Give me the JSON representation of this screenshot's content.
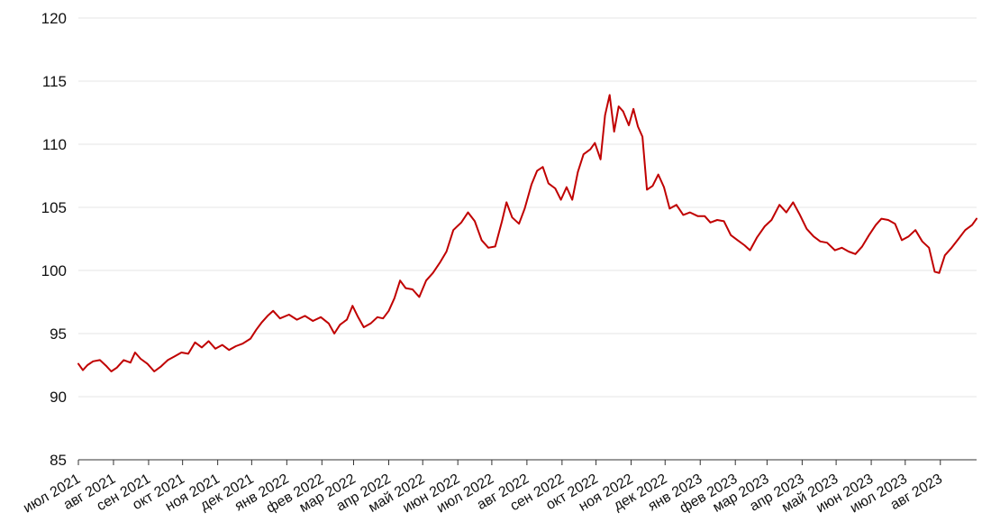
{
  "chart_data": {
    "type": "line",
    "title": "",
    "xlabel": "",
    "ylabel": "",
    "ylim": [
      85,
      120
    ],
    "yticks": [
      85,
      90,
      95,
      100,
      105,
      110,
      115,
      120
    ],
    "grid": true,
    "xticks": [
      "июл 2021",
      "авг 2021",
      "сен 2021",
      "окт 2021",
      "ноя 2021",
      "дек 2021",
      "янв 2022",
      "фев 2022",
      "мар 2022",
      "апр 2022",
      "май 2022",
      "июн 2022",
      "июл 2022",
      "авг 2022",
      "сен 2022",
      "окт 2022",
      "ноя 2022",
      "дек 2022",
      "янв 2023",
      "фев 2023",
      "мар 2023",
      "апр 2023",
      "май 2023",
      "июн 2023",
      "июл 2023",
      "авг 2023"
    ],
    "series": [
      {
        "color": "#c00000",
        "points": [
          [
            "2021-07-01",
            92.6
          ],
          [
            "2021-07-05",
            92.1
          ],
          [
            "2021-07-09",
            92.5
          ],
          [
            "2021-07-14",
            92.8
          ],
          [
            "2021-07-20",
            92.9
          ],
          [
            "2021-07-26",
            92.4
          ],
          [
            "2021-07-30",
            92.0
          ],
          [
            "2021-08-04",
            92.3
          ],
          [
            "2021-08-10",
            92.9
          ],
          [
            "2021-08-16",
            92.7
          ],
          [
            "2021-08-20",
            93.5
          ],
          [
            "2021-08-25",
            93.0
          ],
          [
            "2021-08-31",
            92.6
          ],
          [
            "2021-09-06",
            92.0
          ],
          [
            "2021-09-12",
            92.4
          ],
          [
            "2021-09-18",
            92.9
          ],
          [
            "2021-09-24",
            93.2
          ],
          [
            "2021-09-30",
            93.5
          ],
          [
            "2021-10-06",
            93.4
          ],
          [
            "2021-10-12",
            94.3
          ],
          [
            "2021-10-18",
            93.9
          ],
          [
            "2021-10-24",
            94.4
          ],
          [
            "2021-10-30",
            93.8
          ],
          [
            "2021-11-05",
            94.1
          ],
          [
            "2021-11-11",
            93.7
          ],
          [
            "2021-11-17",
            94.0
          ],
          [
            "2021-11-23",
            94.2
          ],
          [
            "2021-11-30",
            94.6
          ],
          [
            "2021-12-05",
            95.3
          ],
          [
            "2021-12-10",
            95.9
          ],
          [
            "2021-12-15",
            96.4
          ],
          [
            "2021-12-20",
            96.8
          ],
          [
            "2021-12-26",
            96.2
          ],
          [
            "2022-01-03",
            96.5
          ],
          [
            "2022-01-10",
            96.1
          ],
          [
            "2022-01-17",
            96.4
          ],
          [
            "2022-01-24",
            96.0
          ],
          [
            "2022-01-31",
            96.3
          ],
          [
            "2022-02-07",
            95.8
          ],
          [
            "2022-02-12",
            95.0
          ],
          [
            "2022-02-17",
            95.7
          ],
          [
            "2022-02-23",
            96.1
          ],
          [
            "2022-02-28",
            97.2
          ],
          [
            "2022-03-05",
            96.3
          ],
          [
            "2022-03-10",
            95.5
          ],
          [
            "2022-03-16",
            95.8
          ],
          [
            "2022-03-22",
            96.3
          ],
          [
            "2022-03-27",
            96.2
          ],
          [
            "2022-04-01",
            96.8
          ],
          [
            "2022-04-06",
            97.8
          ],
          [
            "2022-04-11",
            99.2
          ],
          [
            "2022-04-16",
            98.6
          ],
          [
            "2022-04-22",
            98.5
          ],
          [
            "2022-04-28",
            97.9
          ],
          [
            "2022-05-04",
            99.2
          ],
          [
            "2022-05-10",
            99.8
          ],
          [
            "2022-05-16",
            100.6
          ],
          [
            "2022-05-22",
            101.5
          ],
          [
            "2022-05-28",
            103.2
          ],
          [
            "2022-06-04",
            103.8
          ],
          [
            "2022-06-10",
            104.6
          ],
          [
            "2022-06-16",
            103.9
          ],
          [
            "2022-06-22",
            102.4
          ],
          [
            "2022-06-28",
            101.8
          ],
          [
            "2022-07-04",
            101.9
          ],
          [
            "2022-07-10",
            103.9
          ],
          [
            "2022-07-14",
            105.4
          ],
          [
            "2022-07-19",
            104.2
          ],
          [
            "2022-07-25",
            103.7
          ],
          [
            "2022-07-30",
            104.9
          ],
          [
            "2022-08-05",
            106.8
          ],
          [
            "2022-08-10",
            107.9
          ],
          [
            "2022-08-15",
            108.2
          ],
          [
            "2022-08-20",
            106.9
          ],
          [
            "2022-08-26",
            106.5
          ],
          [
            "2022-08-31",
            105.6
          ],
          [
            "2022-09-05",
            106.6
          ],
          [
            "2022-09-10",
            105.6
          ],
          [
            "2022-09-15",
            107.8
          ],
          [
            "2022-09-20",
            109.2
          ],
          [
            "2022-09-26",
            109.6
          ],
          [
            "2022-09-30",
            110.1
          ],
          [
            "2022-10-05",
            108.8
          ],
          [
            "2022-10-09",
            112.3
          ],
          [
            "2022-10-13",
            113.9
          ],
          [
            "2022-10-17",
            111.0
          ],
          [
            "2022-10-21",
            113.0
          ],
          [
            "2022-10-25",
            112.6
          ],
          [
            "2022-10-30",
            111.5
          ],
          [
            "2022-11-03",
            112.8
          ],
          [
            "2022-11-07",
            111.4
          ],
          [
            "2022-11-11",
            110.6
          ],
          [
            "2022-11-15",
            106.4
          ],
          [
            "2022-11-20",
            106.7
          ],
          [
            "2022-11-25",
            107.6
          ],
          [
            "2022-11-30",
            106.6
          ],
          [
            "2022-12-05",
            104.9
          ],
          [
            "2022-12-11",
            105.2
          ],
          [
            "2022-12-17",
            104.4
          ],
          [
            "2022-12-23",
            104.6
          ],
          [
            "2022-12-30",
            104.3
          ],
          [
            "2023-01-05",
            104.3
          ],
          [
            "2023-01-10",
            103.8
          ],
          [
            "2023-01-16",
            104.0
          ],
          [
            "2023-01-22",
            103.9
          ],
          [
            "2023-01-28",
            102.8
          ],
          [
            "2023-02-03",
            102.4
          ],
          [
            "2023-02-09",
            102.0
          ],
          [
            "2023-02-14",
            101.6
          ],
          [
            "2023-02-20",
            102.6
          ],
          [
            "2023-02-27",
            103.5
          ],
          [
            "2023-03-05",
            104.0
          ],
          [
            "2023-03-12",
            105.2
          ],
          [
            "2023-03-18",
            104.6
          ],
          [
            "2023-03-24",
            105.4
          ],
          [
            "2023-03-30",
            104.4
          ],
          [
            "2023-04-05",
            103.3
          ],
          [
            "2023-04-11",
            102.7
          ],
          [
            "2023-04-17",
            102.3
          ],
          [
            "2023-04-23",
            102.2
          ],
          [
            "2023-04-30",
            101.6
          ],
          [
            "2023-05-06",
            101.8
          ],
          [
            "2023-05-12",
            101.5
          ],
          [
            "2023-05-18",
            101.3
          ],
          [
            "2023-05-24",
            101.9
          ],
          [
            "2023-05-30",
            102.8
          ],
          [
            "2023-06-05",
            103.6
          ],
          [
            "2023-06-10",
            104.1
          ],
          [
            "2023-06-16",
            104.0
          ],
          [
            "2023-06-22",
            103.7
          ],
          [
            "2023-06-28",
            102.4
          ],
          [
            "2023-07-04",
            102.7
          ],
          [
            "2023-07-10",
            103.2
          ],
          [
            "2023-07-16",
            102.3
          ],
          [
            "2023-07-22",
            101.8
          ],
          [
            "2023-07-27",
            99.9
          ],
          [
            "2023-07-31",
            99.8
          ],
          [
            "2023-08-05",
            101.2
          ],
          [
            "2023-08-11",
            101.8
          ],
          [
            "2023-08-17",
            102.5
          ],
          [
            "2023-08-23",
            103.2
          ],
          [
            "2023-08-29",
            103.6
          ],
          [
            "2023-09-02",
            104.1
          ]
        ]
      }
    ]
  }
}
